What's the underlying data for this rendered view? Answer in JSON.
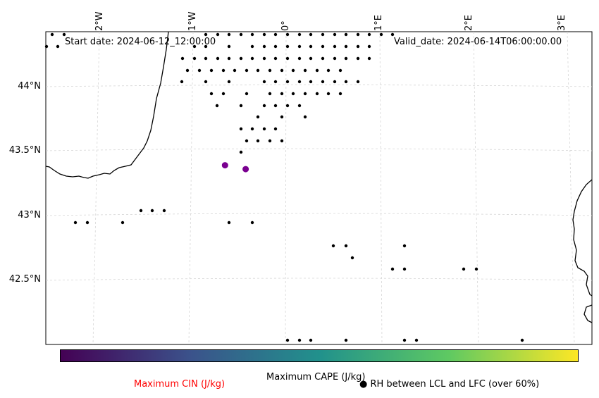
{
  "map": {
    "start_date": "Start date: 2024-06-12_12:00:00",
    "valid_date": "Valid_date: 2024-06-14T06:00:00.00",
    "lon_ticks": [
      "2°W",
      "1°W",
      "0°",
      "1°E",
      "2°E",
      "3°E"
    ],
    "lat_ticks": [
      "44°N",
      "43.5°N",
      "43°N",
      "42.5°N"
    ],
    "colorbar_label": "Maximum CAPE (J/kg)",
    "cin_label": "Maximum CIN (J/kg)",
    "rh_label": "RH between LCL and LFC (over 60%)",
    "rh_marker": "●",
    "colors": {
      "cin": "#ff0000",
      "cape_marker": "#7a0090",
      "colorbar_start": "#440154",
      "colorbar_mid": "#21918c",
      "colorbar_end": "#fde725",
      "coastline": "#000000",
      "grid": "#d0d0d0"
    },
    "cape_points": [
      {
        "lon": -0.65,
        "lat": 43.39
      },
      {
        "lon": -0.43,
        "lat": 43.36
      }
    ]
  }
}
